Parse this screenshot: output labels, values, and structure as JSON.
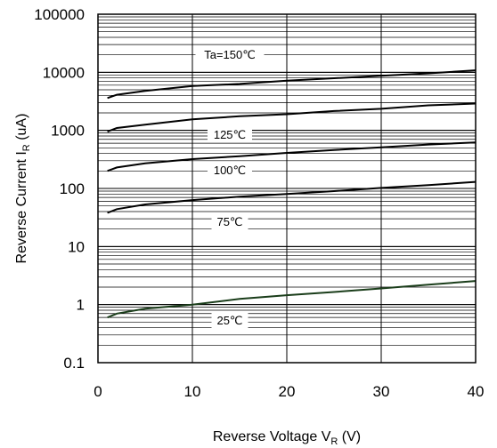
{
  "chart_data": {
    "type": "line",
    "title": "",
    "xlabel_main": "Reverse Voltage  V",
    "xlabel_sub": "R",
    "xlabel_unit": " (V)",
    "ylabel_main": "Reverse Current  I",
    "ylabel_sub": "R",
    "ylabel_unit": " (uA)",
    "x_ticks": [
      "0",
      "10",
      "20",
      "30",
      "40"
    ],
    "y_ticks": [
      "0.1",
      "1",
      "10",
      "100",
      "1000",
      "10000",
      "100000"
    ],
    "xlim": [
      0,
      40
    ],
    "ylim": [
      0.1,
      100000
    ],
    "y_scale": "log",
    "grid": true,
    "series": [
      {
        "name": "Ta=150℃",
        "color": "#000000",
        "x": [
          1,
          2,
          5,
          10,
          15,
          20,
          25,
          30,
          35,
          40
        ],
        "y": [
          3600,
          4100,
          4800,
          5800,
          6300,
          7200,
          7900,
          8700,
          9600,
          10800
        ]
      },
      {
        "name": "125℃",
        "color": "#000000",
        "x": [
          1,
          2,
          5,
          10,
          15,
          20,
          25,
          30,
          35,
          40
        ],
        "y": [
          950,
          1100,
          1250,
          1550,
          1750,
          1900,
          2150,
          2350,
          2700,
          2900
        ]
      },
      {
        "name": "100℃",
        "color": "#000000",
        "x": [
          1,
          2,
          5,
          10,
          15,
          20,
          25,
          30,
          35,
          40
        ],
        "y": [
          200,
          230,
          270,
          320,
          360,
          410,
          460,
          510,
          570,
          620
        ]
      },
      {
        "name": "75℃",
        "color": "#000000",
        "x": [
          1,
          2,
          5,
          10,
          15,
          20,
          25,
          30,
          35,
          40
        ],
        "y": [
          38,
          44,
          53,
          63,
          72,
          80,
          90,
          102,
          114,
          130
        ]
      },
      {
        "name": "25℃",
        "color": "#1a3d1a",
        "x": [
          1,
          2,
          5,
          10,
          15,
          20,
          25,
          30,
          35,
          40
        ],
        "y": [
          0.6,
          0.7,
          0.85,
          1.0,
          1.25,
          1.45,
          1.65,
          1.9,
          2.2,
          2.55
        ]
      }
    ]
  }
}
